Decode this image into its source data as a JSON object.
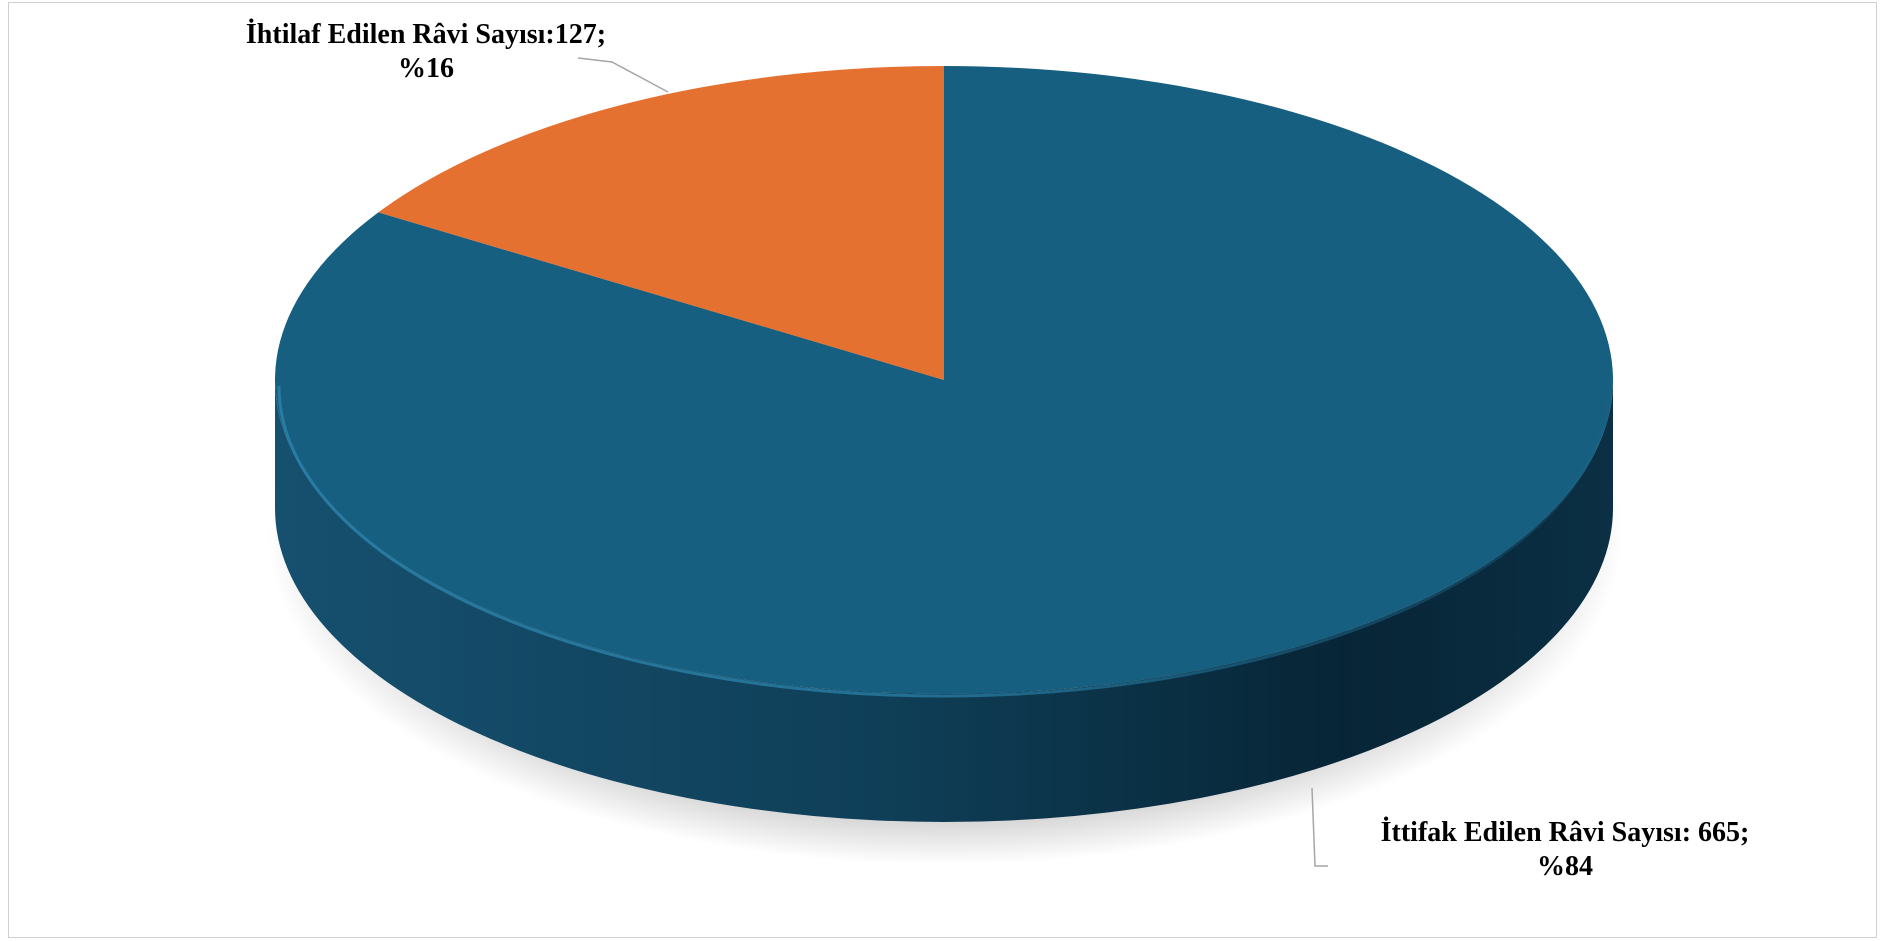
{
  "chart_data": {
    "type": "pie",
    "style": "3d",
    "slices": [
      {
        "label": "İttifak Edilen Râvi Sayısı",
        "value": 665,
        "percent": 84,
        "color": "#175F80",
        "label_line1": "İttifak Edilen Râvi Sayısı: 665;",
        "label_line2": "%84"
      },
      {
        "label": "İhtilaf Edilen Râvi Sayısı",
        "value": 127,
        "percent": 16,
        "color": "#E57131",
        "label_line1": "İhtilaf Edilen Râvi Sayısı:127;",
        "label_line2": "%16"
      }
    ],
    "legend": "none"
  }
}
